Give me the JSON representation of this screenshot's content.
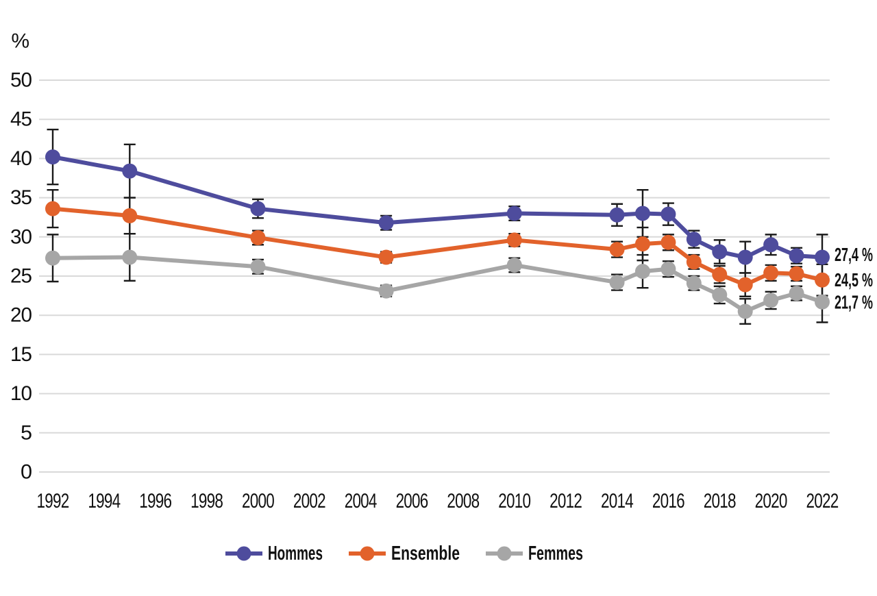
{
  "chart_data": {
    "type": "line",
    "title": "",
    "ylabel_unit": "%",
    "ylim": [
      0,
      50
    ],
    "y_tick_step": 5,
    "y_tick_labels": [
      "0",
      "5",
      "10",
      "15",
      "20",
      "25",
      "30",
      "35",
      "40",
      "45",
      "50"
    ],
    "x_range_years": [
      1992,
      2022
    ],
    "x_tick_labels": [
      "1992",
      "1994",
      "1996",
      "1998",
      "2000",
      "2002",
      "2004",
      "2006",
      "2008",
      "2010",
      "2012",
      "2014",
      "2016",
      "2018",
      "2020",
      "2022"
    ],
    "x": [
      1992,
      1995,
      2000,
      2005,
      2010,
      2014,
      2015,
      2016,
      2017,
      2018,
      2019,
      2020,
      2021,
      2022
    ],
    "grid": "horizontal",
    "legend_position": "bottom-center",
    "error_bars": true,
    "series": [
      {
        "name": "Hommes",
        "color": "#4E4C9D",
        "values": [
          40.2,
          38.4,
          33.6,
          31.8,
          33.0,
          32.8,
          33.0,
          32.9,
          29.7,
          28.1,
          27.4,
          29.0,
          27.6,
          27.4
        ],
        "errors": [
          3.5,
          3.4,
          1.2,
          0.9,
          0.9,
          1.4,
          3.0,
          1.4,
          1.1,
          1.5,
          2.0,
          1.3,
          1.0,
          2.9
        ],
        "end_label": "27,4 %"
      },
      {
        "name": "Ensemble",
        "color": "#E2622B",
        "values": [
          33.6,
          32.7,
          29.9,
          27.4,
          29.6,
          28.4,
          29.1,
          29.3,
          26.8,
          25.2,
          23.9,
          25.4,
          25.3,
          24.5
        ],
        "errors": [
          2.4,
          2.3,
          0.9,
          0.7,
          0.8,
          1.0,
          2.1,
          1.0,
          0.9,
          1.1,
          1.5,
          1.0,
          0.9,
          2.0
        ],
        "end_label": "24,5 %"
      },
      {
        "name": "Femmes",
        "color": "#A6A6A6",
        "values": [
          27.3,
          27.4,
          26.2,
          23.1,
          26.4,
          24.2,
          25.6,
          25.9,
          24.1,
          22.6,
          20.5,
          21.9,
          22.8,
          21.7
        ],
        "errors": [
          3.0,
          3.0,
          0.9,
          0.7,
          0.9,
          1.0,
          2.1,
          1.0,
          0.9,
          1.1,
          1.6,
          1.1,
          0.9,
          2.6
        ],
        "end_label": "21,7 %"
      }
    ]
  },
  "colors": {
    "grid": "#D9D9D9",
    "error_bar": "#1A1A1A",
    "text": "#111111",
    "background": "#FFFFFF"
  }
}
